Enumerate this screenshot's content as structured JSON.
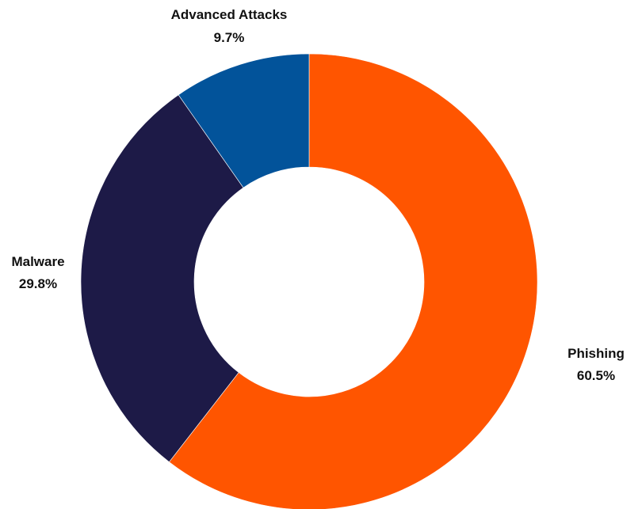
{
  "chart_data": {
    "type": "pie",
    "variant": "donut",
    "title": "",
    "legend": "none",
    "slices": [
      {
        "label": "Phishing",
        "value": 60.5,
        "display": "60.5%",
        "color": "#FF5500"
      },
      {
        "label": "Malware",
        "value": 29.8,
        "display": "29.8%",
        "color": "#1D1A47"
      },
      {
        "label": "Advanced Attacks",
        "value": 9.7,
        "display": "9.7%",
        "color": "#02539A"
      }
    ]
  }
}
